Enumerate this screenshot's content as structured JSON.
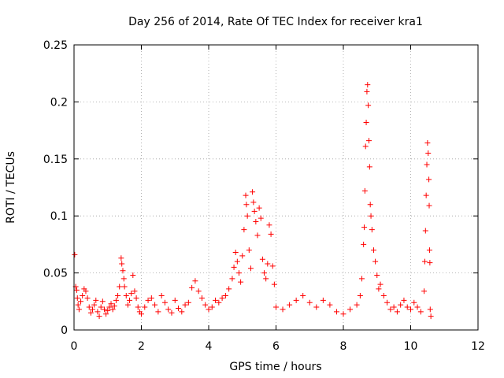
{
  "chart_data": {
    "type": "scatter",
    "title": "Day 256 of 2014, Rate Of TEC Index for receiver kra1",
    "xlabel": "GPS time / hours",
    "ylabel": "ROTI / TECUs",
    "xlim": [
      0,
      12
    ],
    "ylim": [
      0,
      0.25
    ],
    "xticks": [
      0,
      2,
      4,
      6,
      8,
      10,
      12
    ],
    "yticks": [
      0,
      0.05,
      0.1,
      0.15,
      0.2,
      0.25
    ],
    "grid": true,
    "marker": "+",
    "color": "#ff0000",
    "series": [
      {
        "name": "kra1",
        "points": [
          [
            0.02,
            0.066
          ],
          [
            0.05,
            0.038
          ],
          [
            0.08,
            0.035
          ],
          [
            0.1,
            0.028
          ],
          [
            0.12,
            0.022
          ],
          [
            0.15,
            0.018
          ],
          [
            0.2,
            0.025
          ],
          [
            0.25,
            0.03
          ],
          [
            0.3,
            0.036
          ],
          [
            0.35,
            0.034
          ],
          [
            0.4,
            0.028
          ],
          [
            0.45,
            0.02
          ],
          [
            0.5,
            0.015
          ],
          [
            0.55,
            0.018
          ],
          [
            0.6,
            0.022
          ],
          [
            0.65,
            0.026
          ],
          [
            0.7,
            0.016
          ],
          [
            0.75,
            0.012
          ],
          [
            0.8,
            0.02
          ],
          [
            0.85,
            0.025
          ],
          [
            0.9,
            0.018
          ],
          [
            0.95,
            0.014
          ],
          [
            1.0,
            0.017
          ],
          [
            1.05,
            0.02
          ],
          [
            1.1,
            0.023
          ],
          [
            1.15,
            0.018
          ],
          [
            1.2,
            0.021
          ],
          [
            1.25,
            0.026
          ],
          [
            1.3,
            0.03
          ],
          [
            1.35,
            0.038
          ],
          [
            1.4,
            0.063
          ],
          [
            1.42,
            0.058
          ],
          [
            1.45,
            0.052
          ],
          [
            1.48,
            0.045
          ],
          [
            1.5,
            0.038
          ],
          [
            1.55,
            0.03
          ],
          [
            1.6,
            0.022
          ],
          [
            1.65,
            0.026
          ],
          [
            1.7,
            0.032
          ],
          [
            1.75,
            0.048
          ],
          [
            1.8,
            0.034
          ],
          [
            1.85,
            0.028
          ],
          [
            1.9,
            0.02
          ],
          [
            1.95,
            0.016
          ],
          [
            2.0,
            0.014
          ],
          [
            2.1,
            0.02
          ],
          [
            2.2,
            0.026
          ],
          [
            2.3,
            0.028
          ],
          [
            2.4,
            0.022
          ],
          [
            2.5,
            0.016
          ],
          [
            2.6,
            0.03
          ],
          [
            2.7,
            0.024
          ],
          [
            2.8,
            0.018
          ],
          [
            2.9,
            0.015
          ],
          [
            3.0,
            0.026
          ],
          [
            3.1,
            0.019
          ],
          [
            3.2,
            0.016
          ],
          [
            3.3,
            0.022
          ],
          [
            3.4,
            0.024
          ],
          [
            3.5,
            0.037
          ],
          [
            3.6,
            0.043
          ],
          [
            3.7,
            0.034
          ],
          [
            3.8,
            0.028
          ],
          [
            3.9,
            0.022
          ],
          [
            4.0,
            0.018
          ],
          [
            4.1,
            0.02
          ],
          [
            4.2,
            0.026
          ],
          [
            4.3,
            0.024
          ],
          [
            4.4,
            0.028
          ],
          [
            4.5,
            0.03
          ],
          [
            4.6,
            0.036
          ],
          [
            4.7,
            0.045
          ],
          [
            4.75,
            0.055
          ],
          [
            4.8,
            0.068
          ],
          [
            4.85,
            0.06
          ],
          [
            4.9,
            0.05
          ],
          [
            4.95,
            0.042
          ],
          [
            5.0,
            0.065
          ],
          [
            5.05,
            0.088
          ],
          [
            5.1,
            0.118
          ],
          [
            5.12,
            0.11
          ],
          [
            5.15,
            0.1
          ],
          [
            5.2,
            0.07
          ],
          [
            5.25,
            0.054
          ],
          [
            5.3,
            0.121
          ],
          [
            5.33,
            0.112
          ],
          [
            5.36,
            0.104
          ],
          [
            5.4,
            0.095
          ],
          [
            5.45,
            0.083
          ],
          [
            5.5,
            0.107
          ],
          [
            5.55,
            0.098
          ],
          [
            5.6,
            0.062
          ],
          [
            5.65,
            0.05
          ],
          [
            5.7,
            0.045
          ],
          [
            5.75,
            0.058
          ],
          [
            5.8,
            0.092
          ],
          [
            5.85,
            0.084
          ],
          [
            5.9,
            0.056
          ],
          [
            5.95,
            0.04
          ],
          [
            6.0,
            0.02
          ],
          [
            6.2,
            0.018
          ],
          [
            6.4,
            0.022
          ],
          [
            6.6,
            0.026
          ],
          [
            6.8,
            0.03
          ],
          [
            7.0,
            0.024
          ],
          [
            7.2,
            0.02
          ],
          [
            7.4,
            0.026
          ],
          [
            7.6,
            0.022
          ],
          [
            7.8,
            0.016
          ],
          [
            8.0,
            0.014
          ],
          [
            8.2,
            0.018
          ],
          [
            8.4,
            0.022
          ],
          [
            8.5,
            0.03
          ],
          [
            8.55,
            0.045
          ],
          [
            8.6,
            0.075
          ],
          [
            8.62,
            0.09
          ],
          [
            8.64,
            0.122
          ],
          [
            8.66,
            0.161
          ],
          [
            8.68,
            0.182
          ],
          [
            8.7,
            0.209
          ],
          [
            8.72,
            0.215
          ],
          [
            8.74,
            0.197
          ],
          [
            8.76,
            0.166
          ],
          [
            8.78,
            0.143
          ],
          [
            8.8,
            0.11
          ],
          [
            8.82,
            0.1
          ],
          [
            8.85,
            0.088
          ],
          [
            8.9,
            0.07
          ],
          [
            8.95,
            0.06
          ],
          [
            9.0,
            0.048
          ],
          [
            9.05,
            0.036
          ],
          [
            9.1,
            0.04
          ],
          [
            9.2,
            0.03
          ],
          [
            9.3,
            0.024
          ],
          [
            9.4,
            0.018
          ],
          [
            9.5,
            0.02
          ],
          [
            9.6,
            0.016
          ],
          [
            9.7,
            0.022
          ],
          [
            9.8,
            0.026
          ],
          [
            9.9,
            0.02
          ],
          [
            10.0,
            0.018
          ],
          [
            10.1,
            0.024
          ],
          [
            10.2,
            0.02
          ],
          [
            10.3,
            0.016
          ],
          [
            10.4,
            0.034
          ],
          [
            10.42,
            0.06
          ],
          [
            10.44,
            0.087
          ],
          [
            10.46,
            0.118
          ],
          [
            10.48,
            0.145
          ],
          [
            10.5,
            0.164
          ],
          [
            10.52,
            0.155
          ],
          [
            10.54,
            0.132
          ],
          [
            10.55,
            0.109
          ],
          [
            10.56,
            0.07
          ],
          [
            10.57,
            0.059
          ],
          [
            10.58,
            0.018
          ],
          [
            10.6,
            0.012
          ]
        ]
      }
    ]
  }
}
